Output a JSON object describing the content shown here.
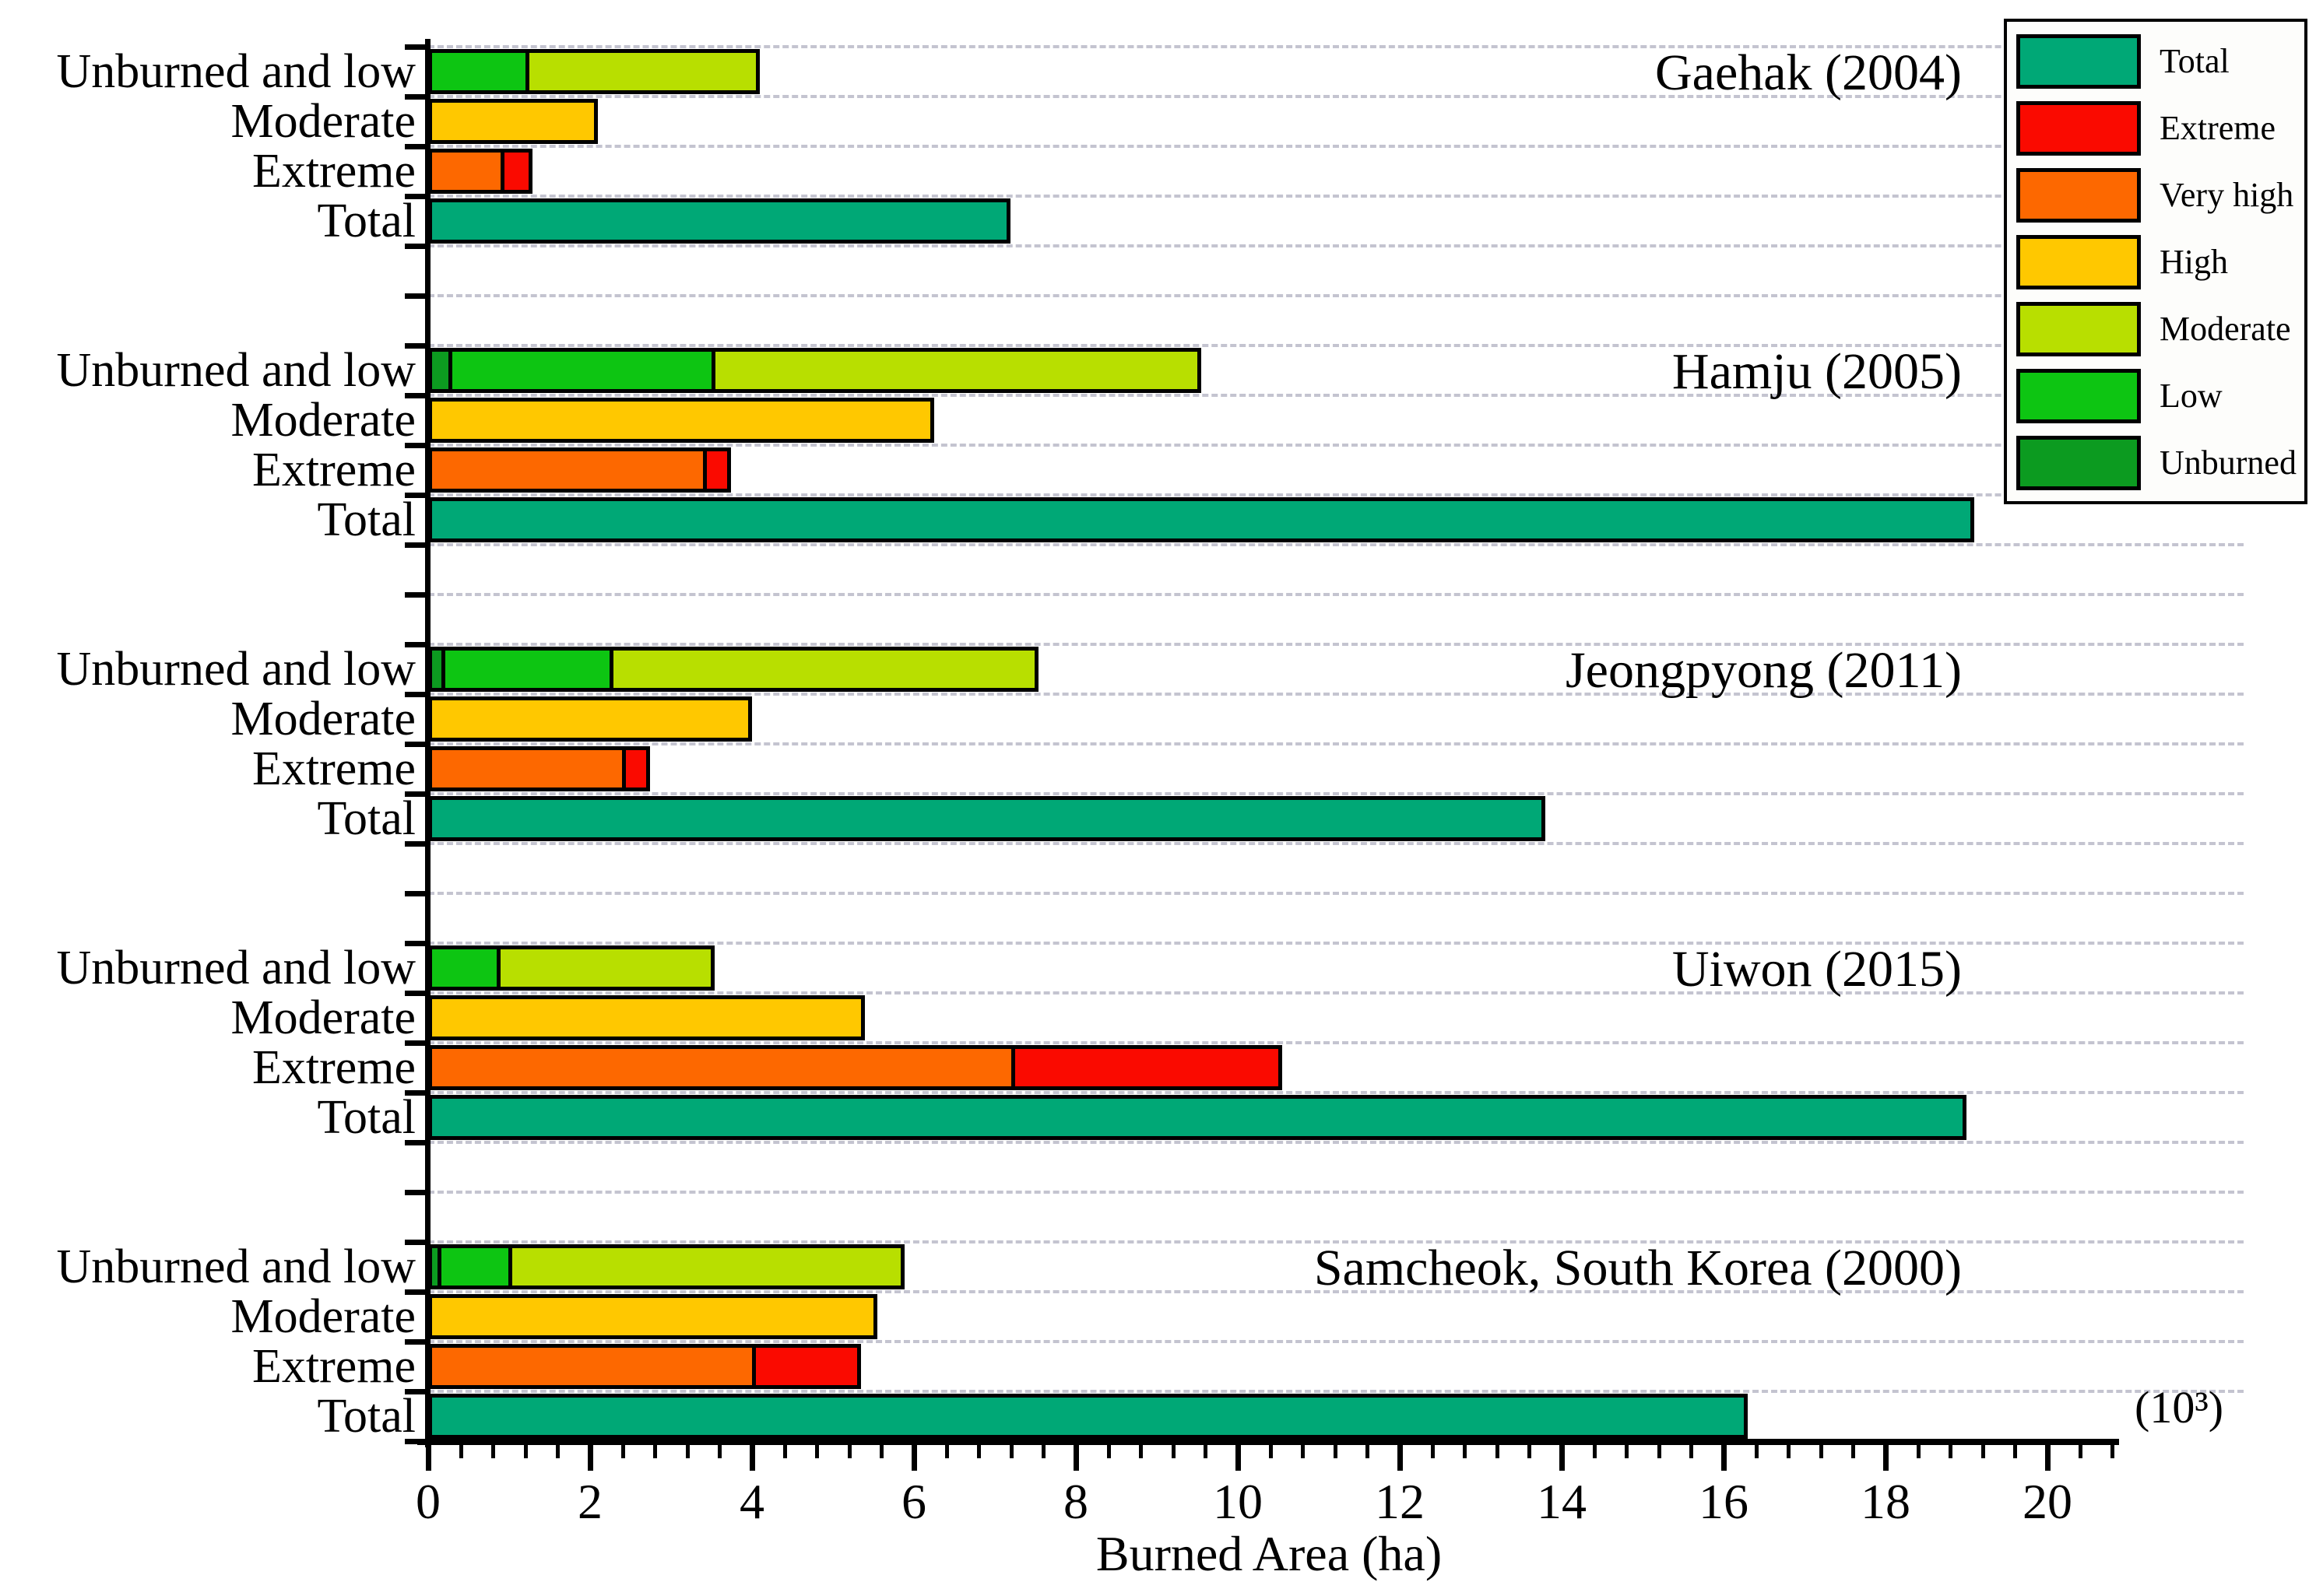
{
  "figure": {
    "xlabel": "Burned Area (ha)",
    "unit_note": "(10³)"
  },
  "chart_data": {
    "type": "bar",
    "orientation": "horizontal",
    "title": "",
    "xlabel": "Burned Area (ha)",
    "x_unit_note": "(10³)",
    "x_axis": {
      "range": [
        0,
        20.9
      ],
      "major_ticks": [
        0,
        2,
        4,
        6,
        8,
        10,
        12,
        14,
        16,
        18,
        20
      ],
      "minor_tick_step": 0.4,
      "grid": "dashed horizontal gridlines"
    },
    "row_label_set": [
      "Unburned and low",
      "Moderate",
      "Extreme",
      "Total"
    ],
    "legend": {
      "position": "top-right",
      "items": [
        {
          "key": "total",
          "label": "Total",
          "color": "#00A876"
        },
        {
          "key": "extreme",
          "label": "Extreme",
          "color": "#FA0A00"
        },
        {
          "key": "very_high",
          "label": "Very high",
          "color": "#FD6800"
        },
        {
          "key": "high",
          "label": "High",
          "color": "#FFC800"
        },
        {
          "key": "moderate",
          "label": "Moderate",
          "color": "#B8DF00"
        },
        {
          "key": "low",
          "label": "Low",
          "color": "#0DC512"
        },
        {
          "key": "unburned",
          "label": "Unburned",
          "color": "#0C9B20"
        }
      ]
    },
    "values_unit": "10^3 ha",
    "groups": [
      {
        "title": "Gaehak (2004)",
        "rows": [
          {
            "label": "Unburned and low",
            "segments": [
              {
                "category": "low",
                "value": 1.15
              },
              {
                "category": "moderate",
                "value": 2.8
              }
            ]
          },
          {
            "label": "Moderate",
            "segments": [
              {
                "category": "high",
                "value": 2.0
              }
            ]
          },
          {
            "label": "Extreme",
            "segments": [
              {
                "category": "very_high",
                "value": 0.85
              },
              {
                "category": "extreme",
                "value": 0.3
              }
            ]
          },
          {
            "label": "Total",
            "segments": [
              {
                "category": "total",
                "value": 7.1
              }
            ]
          }
        ]
      },
      {
        "title": "Hamju (2005)",
        "rows": [
          {
            "label": "Unburned and low",
            "segments": [
              {
                "category": "unburned",
                "value": 0.2
              },
              {
                "category": "low",
                "value": 3.2
              },
              {
                "category": "moderate",
                "value": 5.95
              }
            ]
          },
          {
            "label": "Moderate",
            "segments": [
              {
                "category": "high",
                "value": 6.15
              }
            ]
          },
          {
            "label": "Extreme",
            "segments": [
              {
                "category": "very_high",
                "value": 3.35
              },
              {
                "category": "extreme",
                "value": 0.25
              }
            ]
          },
          {
            "label": "Total",
            "segments": [
              {
                "category": "total",
                "value": 19.0
              }
            ]
          }
        ]
      },
      {
        "title": "Jeongpyong (2011)",
        "rows": [
          {
            "label": "Unburned and low",
            "segments": [
              {
                "category": "unburned",
                "value": 0.12
              },
              {
                "category": "low",
                "value": 2.03
              },
              {
                "category": "moderate",
                "value": 5.2
              }
            ]
          },
          {
            "label": "Moderate",
            "segments": [
              {
                "category": "high",
                "value": 3.9
              }
            ]
          },
          {
            "label": "Extreme",
            "segments": [
              {
                "category": "very_high",
                "value": 2.35
              },
              {
                "category": "extreme",
                "value": 0.25
              }
            ]
          },
          {
            "label": "Total",
            "segments": [
              {
                "category": "total",
                "value": 13.7
              }
            ]
          }
        ]
      },
      {
        "title": "Uiwon (2015)",
        "rows": [
          {
            "label": "Unburned and low",
            "segments": [
              {
                "category": "low",
                "value": 0.8
              },
              {
                "category": "moderate",
                "value": 2.6
              }
            ]
          },
          {
            "label": "Moderate",
            "segments": [
              {
                "category": "high",
                "value": 5.3
              }
            ]
          },
          {
            "label": "Extreme",
            "segments": [
              {
                "category": "very_high",
                "value": 7.15
              },
              {
                "category": "extreme",
                "value": 3.25
              }
            ]
          },
          {
            "label": "Total",
            "segments": [
              {
                "category": "total",
                "value": 18.9
              }
            ]
          }
        ]
      },
      {
        "title": "Samcheok, South Korea (2000)",
        "rows": [
          {
            "label": "Unburned and low",
            "segments": [
              {
                "category": "unburned",
                "value": 0.07
              },
              {
                "category": "low",
                "value": 0.83
              },
              {
                "category": "moderate",
                "value": 4.8
              }
            ]
          },
          {
            "label": "Moderate",
            "segments": [
              {
                "category": "high",
                "value": 5.45
              }
            ]
          },
          {
            "label": "Extreme",
            "segments": [
              {
                "category": "very_high",
                "value": 3.95
              },
              {
                "category": "extreme",
                "value": 1.25
              }
            ]
          },
          {
            "label": "Total",
            "segments": [
              {
                "category": "total",
                "value": 16.2
              }
            ]
          }
        ]
      }
    ]
  }
}
